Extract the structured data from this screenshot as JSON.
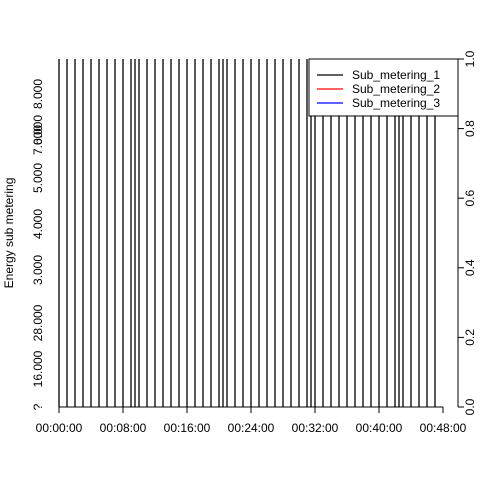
{
  "chart_data": {
    "type": "line",
    "ylabel": "Energy sub metering",
    "xlabel": "",
    "title": "",
    "x_ticks": [
      "00:00:00",
      "00:08:00",
      "00:16:00",
      "00:24:00",
      "00:32:00",
      "00:40:00",
      "00:48:00"
    ],
    "xlim_minutes": [
      0,
      48
    ],
    "y_left_ticks": [
      "?",
      "16.000",
      "28.000",
      "3.000",
      "4.000",
      "5.000",
      "6.000",
      "7.000",
      "8.000"
    ],
    "y_right_ticks": [
      "0.0",
      "0.2",
      "0.4",
      "0.6",
      "0.8",
      "1.0"
    ],
    "ylim": [
      0,
      1
    ],
    "legend": {
      "placement": "top-right",
      "entries": [
        {
          "name": "Sub_metering_1",
          "color": "#000000"
        },
        {
          "name": "Sub_metering_2",
          "color": "#ff0000"
        },
        {
          "name": "Sub_metering_3",
          "color": "#0000ff"
        }
      ]
    },
    "vertical_line_minutes": [
      0,
      1,
      2,
      3,
      4,
      5,
      6,
      7,
      8,
      9,
      9.5,
      10,
      11,
      12,
      13,
      14,
      15,
      16,
      17,
      18,
      19,
      20,
      20.5,
      21,
      22,
      23,
      24,
      25,
      26,
      27,
      28,
      29,
      30,
      31,
      31.5,
      32,
      33,
      34,
      35,
      36,
      37,
      38,
      39,
      40,
      41,
      42,
      42.5,
      43,
      44,
      45,
      46,
      47
    ],
    "grid": false
  }
}
